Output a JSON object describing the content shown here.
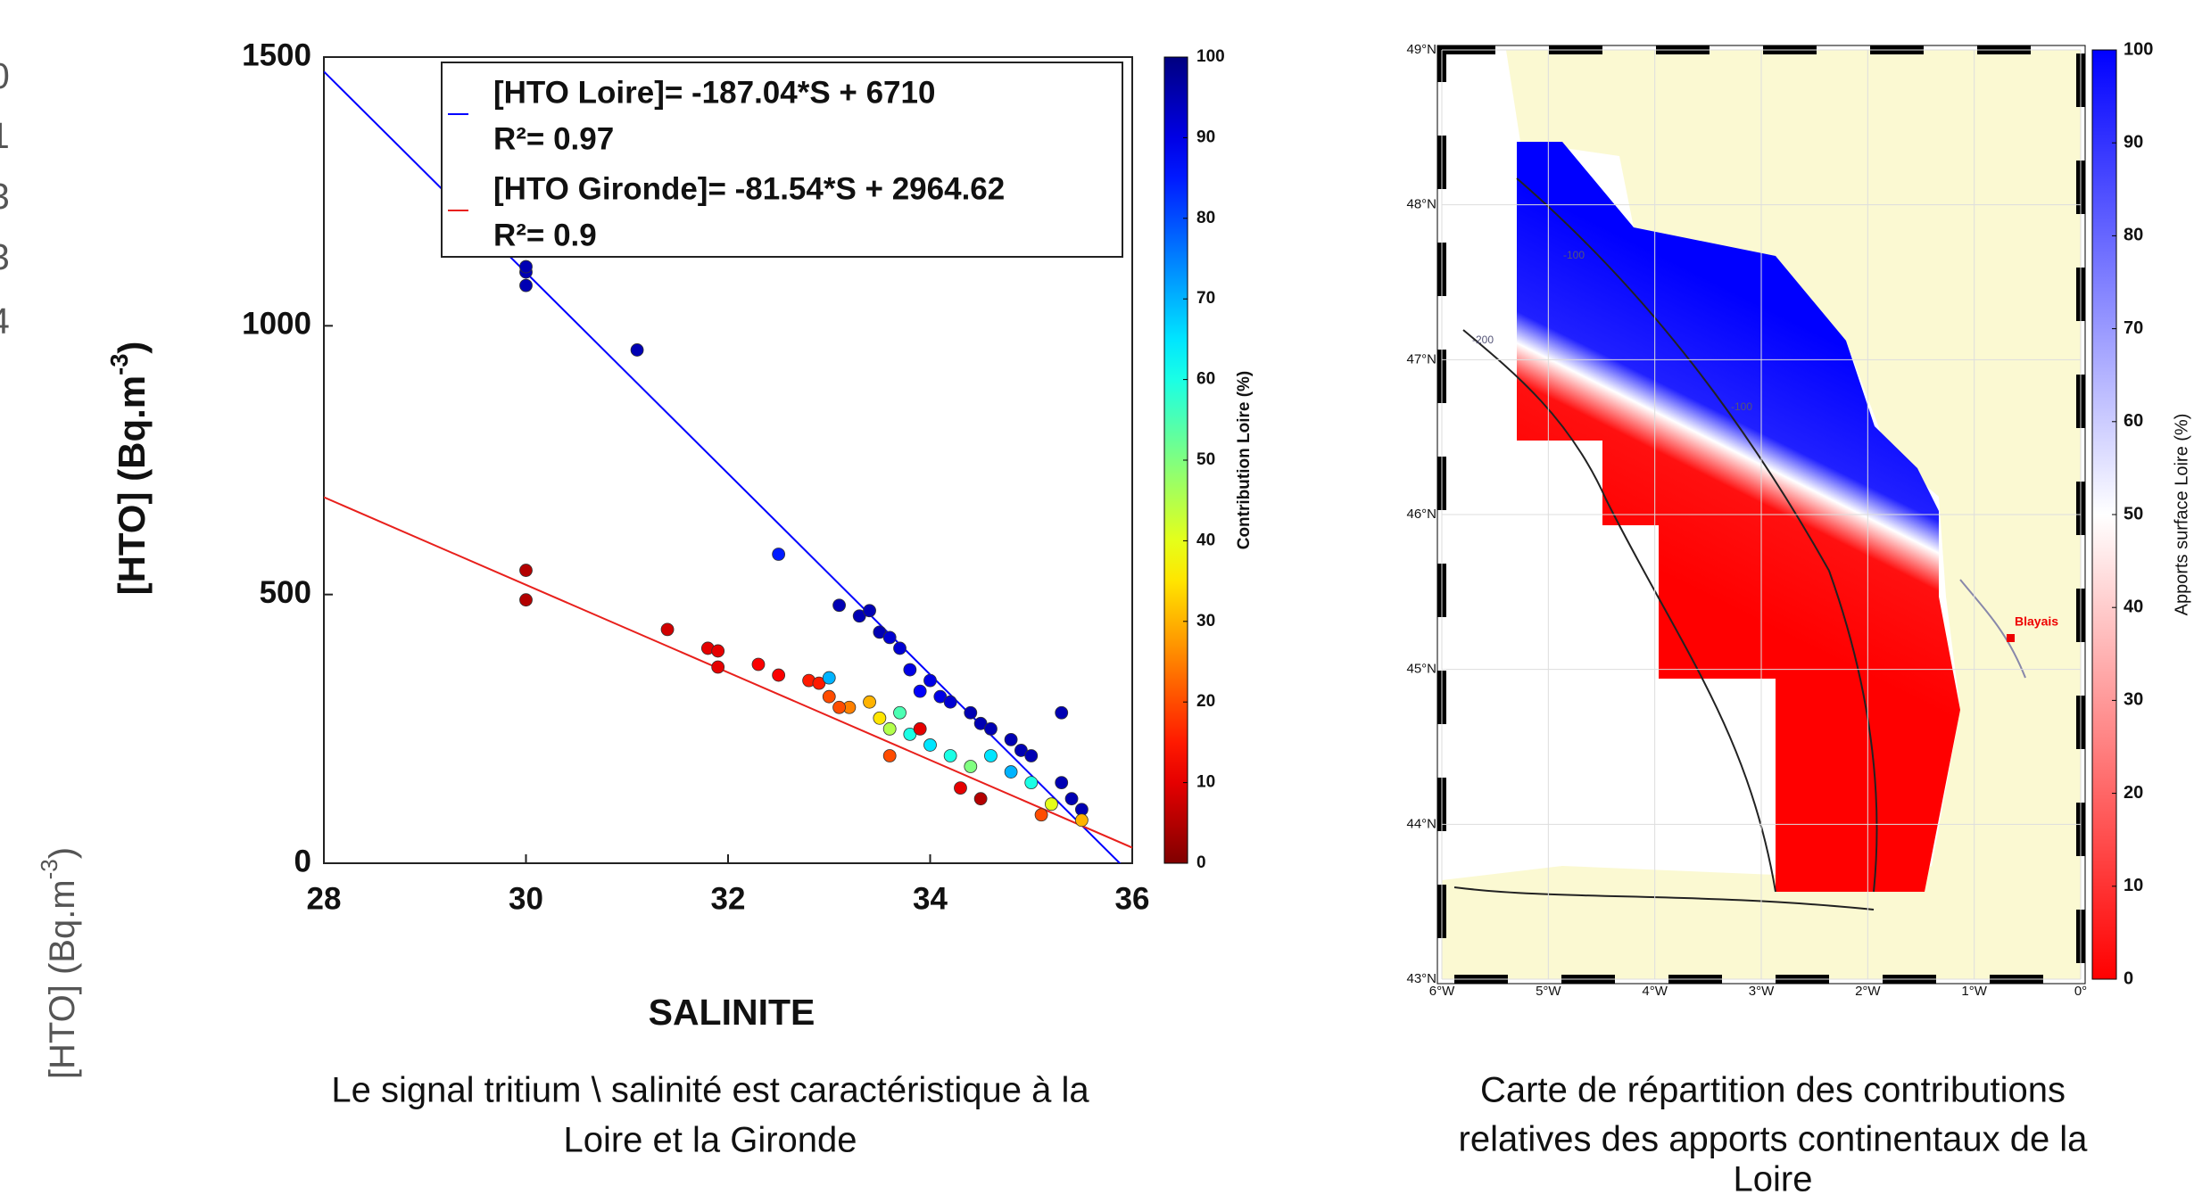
{
  "left_fragment": {
    "ticks": [
      "0",
      "1",
      "3",
      "3",
      "4"
    ],
    "axis_label_parts": [
      "[HTO] (Bq.m",
      "-3",
      ")"
    ]
  },
  "chart_data": [
    {
      "type": "scatter",
      "ylabel_parts": [
        "[HTO] (Bq.m",
        "-3",
        ")"
      ],
      "xlabel": "SALINITE",
      "caption": [
        "Le signal tritium \\ salinité est  caractéristique à la",
        "Loire et  la Gironde"
      ],
      "xlim": [
        28,
        36
      ],
      "xticks": [
        28,
        30,
        32,
        34,
        36
      ],
      "ylim": [
        0,
        1500
      ],
      "yticks": [
        0,
        500,
        1000,
        1500
      ],
      "fits": [
        {
          "name": "[HTO Loire]= -187.04*S + 6710",
          "r2": "R²= 0.97",
          "color": "#0000ff",
          "x": [
            28,
            36
          ],
          "values": [
            1473,
            -23
          ]
        },
        {
          "name": "[HTO Gironde]= -81.54*S + 2964.62",
          "r2": "R²= 0.9",
          "color": "#e8201c",
          "x": [
            28,
            36
          ],
          "values": [
            681,
            29
          ]
        }
      ],
      "points": {
        "x": [
          30,
          30,
          30,
          31.1,
          32.5,
          30,
          30,
          31.4,
          31.8,
          31.9,
          31.9,
          32.3,
          32.5,
          32.8,
          32.9,
          33,
          33.1,
          33.3,
          33.4,
          33.5,
          33.6,
          33.7,
          33.8,
          33.9,
          34,
          34.1,
          34.2,
          34.4,
          34.5,
          34.6,
          34.8,
          34.9,
          35,
          35.3,
          35.3,
          35.4,
          35.5,
          33.2,
          33.4,
          33.5,
          33.6,
          33.7,
          33.8,
          34,
          34.2,
          34.4,
          34.6,
          34.8,
          35,
          35.2,
          35.5,
          33.1,
          33,
          34.3,
          34.5,
          35.1,
          33.9,
          33.6
        ],
        "values": [
          1100,
          1075,
          1110,
          955,
          575,
          545,
          490,
          435,
          400,
          395,
          365,
          370,
          350,
          340,
          335,
          345,
          480,
          460,
          470,
          430,
          420,
          400,
          360,
          320,
          340,
          310,
          300,
          280,
          260,
          250,
          230,
          210,
          200,
          280,
          150,
          120,
          100,
          290,
          300,
          270,
          250,
          280,
          240,
          220,
          200,
          180,
          200,
          170,
          150,
          110,
          80,
          290,
          310,
          140,
          120,
          90,
          250,
          200
        ],
        "contribution": [
          95,
          95,
          95,
          95,
          85,
          5,
          5,
          8,
          10,
          10,
          10,
          12,
          12,
          15,
          15,
          70,
          95,
          95,
          95,
          95,
          92,
          92,
          90,
          88,
          90,
          90,
          92,
          95,
          95,
          95,
          95,
          95,
          95,
          95,
          95,
          95,
          95,
          25,
          30,
          35,
          45,
          55,
          60,
          65,
          60,
          50,
          65,
          70,
          60,
          40,
          30,
          20,
          20,
          10,
          5,
          20,
          10,
          20
        ]
      },
      "colormap": "jet_reversed",
      "clim": [
        0,
        100
      ],
      "cticks": [
        0,
        10,
        20,
        30,
        40,
        50,
        60,
        70,
        80,
        90,
        100
      ],
      "clabel": "Contribution Loire (%)"
    },
    {
      "type": "map",
      "caption": [
        "Carte de répartition des contributions",
        "relatives  des apports continentaux de la",
        "Loire"
      ],
      "xlim": [
        -6,
        0
      ],
      "xticks": [
        {
          "value": -6,
          "label": "6°W"
        },
        {
          "value": -5,
          "label": "5°W"
        },
        {
          "value": -4,
          "label": "4°W"
        },
        {
          "value": -3,
          "label": "3°W"
        },
        {
          "value": -2,
          "label": "2°W"
        },
        {
          "value": -1,
          "label": "1°W"
        },
        {
          "value": 0,
          "label": "0°"
        }
      ],
      "ylim": [
        43,
        49
      ],
      "yticks": [
        {
          "value": 43,
          "label": "43°N"
        },
        {
          "value": 44,
          "label": "44°N"
        },
        {
          "value": 45,
          "label": "45°N"
        },
        {
          "value": 46,
          "label": "46°N"
        },
        {
          "value": 47,
          "label": "47°N"
        },
        {
          "value": 48,
          "label": "48°N"
        },
        {
          "value": 49,
          "label": "49°N"
        }
      ],
      "annotation": "Blayais",
      "contour_labels": [
        "-100",
        "-200",
        "-100"
      ],
      "colormap": "red_white_blue",
      "clim": [
        0,
        100
      ],
      "cticks": [
        0,
        10,
        20,
        30,
        40,
        50,
        60,
        70,
        80,
        90,
        100
      ],
      "clabel": "Apports surface Loire (%)"
    }
  ]
}
